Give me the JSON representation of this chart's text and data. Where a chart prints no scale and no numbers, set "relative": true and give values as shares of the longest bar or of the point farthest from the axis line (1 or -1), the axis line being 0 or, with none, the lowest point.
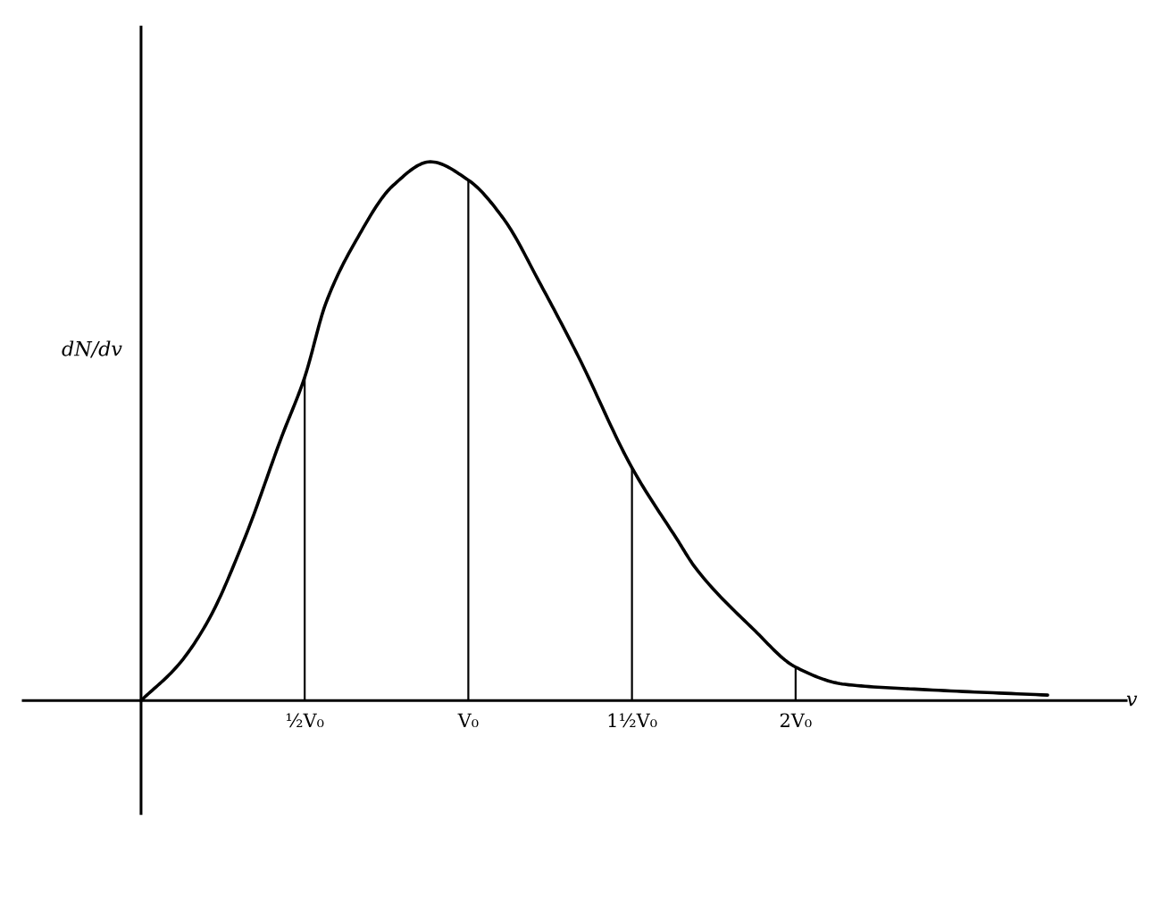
{
  "chart_data": {
    "type": "line",
    "relative": true,
    "xlabel": "v",
    "ylabel": "dN/dv",
    "tick_labels": "x",
    "grid": false,
    "legend": false,
    "marker": "none",
    "line_style": "solid",
    "xlim": [
      -0.36,
      3.01
    ],
    "xticks": [
      {
        "value": 0.5,
        "label": "½V₀"
      },
      {
        "value": 1,
        "label": "V₀"
      },
      {
        "value": 1.5,
        "label": "1½V₀"
      },
      {
        "value": 2,
        "label": "2V₀"
      }
    ],
    "series": [
      {
        "color": "#000000",
        "x": [
          0,
          0.114,
          0.205,
          0.316,
          0.43,
          0.5,
          0.565,
          0.657,
          0.77,
          0.884,
          1.0,
          1.108,
          1.222,
          1.335,
          1.5,
          1.64,
          1.693,
          1.87,
          2.0,
          2.15,
          2.4,
          2.77
        ],
        "values": [
          0,
          0.066,
          0.148,
          0.3,
          0.49,
          0.6,
          0.738,
          0.854,
          0.956,
          1.0,
          0.966,
          0.894,
          0.771,
          0.64,
          0.432,
          0.297,
          0.247,
          0.133,
          0.062,
          0.03,
          0.02,
          0.01
        ]
      },
      {
        "type": "bar",
        "color": "#000000",
        "x": [
          0.5,
          1,
          1.5,
          2
        ],
        "values": [
          0.6,
          0.966,
          0.432,
          0.062
        ]
      }
    ]
  }
}
